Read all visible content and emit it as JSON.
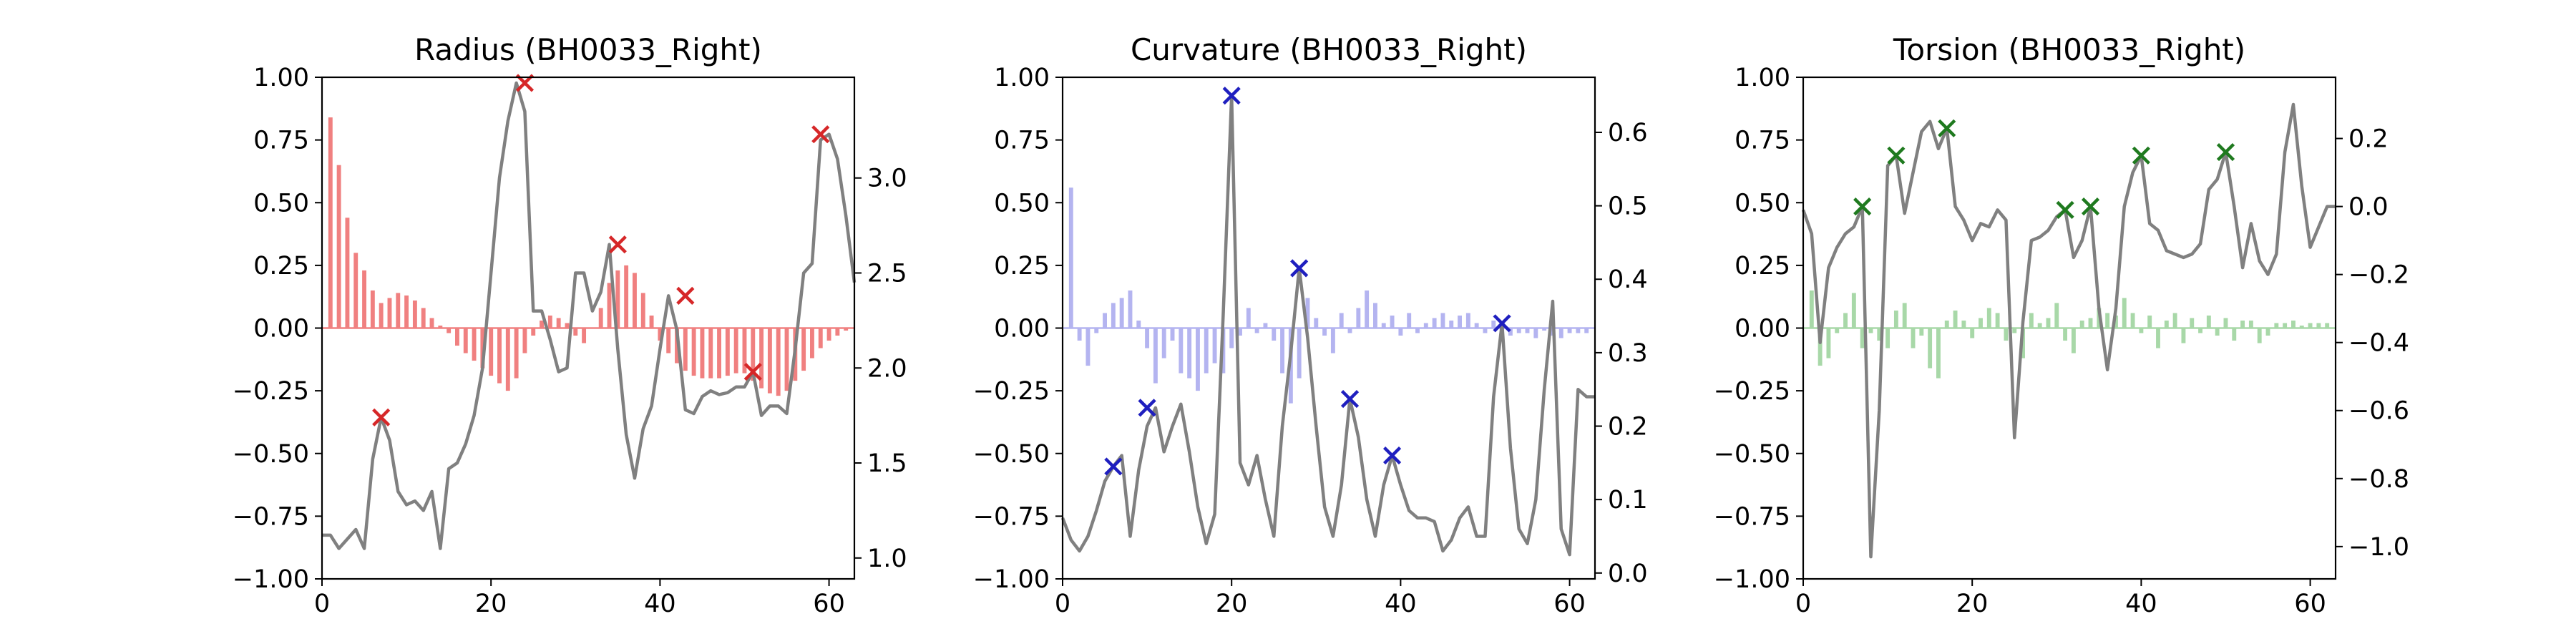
{
  "figure": {
    "background": "#ffffff"
  },
  "chart_data": [
    {
      "type": "bar+line",
      "title": "Radius (BH0033_Right)",
      "bar_color": "#f08080",
      "line_color": "#808080",
      "marker_color": "#d62728",
      "xlim": [
        0,
        63
      ],
      "xticks": [
        0,
        20,
        40,
        60
      ],
      "ylim_left": [
        -1.0,
        1.0
      ],
      "yticks_left": [
        -1.0,
        -0.75,
        -0.5,
        -0.25,
        0.0,
        0.25,
        0.5,
        0.75,
        1.0
      ],
      "ytick_labels_left": [
        "−1.00",
        "−0.75",
        "−0.50",
        "−0.25",
        "0.00",
        "0.25",
        "0.50",
        "0.75",
        "1.00"
      ],
      "ylim_right": [
        0.89,
        3.53
      ],
      "yticks_right": [
        1.0,
        1.5,
        2.0,
        2.5,
        3.0
      ],
      "ytick_labels_right": [
        "1.0",
        "1.5",
        "2.0",
        "2.5",
        "3.0"
      ],
      "bars_x": [
        1,
        2,
        3,
        4,
        5,
        6,
        7,
        8,
        9,
        10,
        11,
        12,
        13,
        14,
        15,
        16,
        17,
        18,
        19,
        20,
        21,
        22,
        23,
        24,
        25,
        26,
        27,
        28,
        29,
        30,
        31,
        32,
        33,
        34,
        35,
        36,
        37,
        38,
        39,
        40,
        41,
        42,
        43,
        44,
        45,
        46,
        47,
        48,
        49,
        50,
        51,
        52,
        53,
        54,
        55,
        56,
        57,
        58,
        59,
        60,
        61,
        62
      ],
      "bars": [
        0.84,
        0.65,
        0.44,
        0.3,
        0.23,
        0.15,
        0.1,
        0.12,
        0.14,
        0.13,
        0.11,
        0.08,
        0.04,
        0.01,
        -0.02,
        -0.07,
        -0.1,
        -0.13,
        -0.16,
        -0.19,
        -0.22,
        -0.25,
        -0.2,
        -0.1,
        -0.03,
        0.03,
        0.05,
        0.04,
        0.02,
        -0.03,
        -0.06,
        0.0,
        0.08,
        0.18,
        0.23,
        0.25,
        0.22,
        0.14,
        0.05,
        -0.05,
        -0.1,
        -0.14,
        -0.17,
        -0.19,
        -0.2,
        -0.2,
        -0.2,
        -0.19,
        -0.18,
        -0.18,
        -0.21,
        -0.24,
        -0.26,
        -0.27,
        -0.25,
        -0.21,
        -0.17,
        -0.12,
        -0.08,
        -0.05,
        -0.03,
        -0.01
      ],
      "line_x": [
        0,
        1,
        2,
        3,
        4,
        5,
        6,
        7,
        8,
        9,
        10,
        11,
        12,
        13,
        14,
        15,
        16,
        17,
        18,
        19,
        20,
        21,
        22,
        23,
        24,
        25,
        26,
        27,
        28,
        29,
        30,
        31,
        32,
        33,
        34,
        35,
        36,
        37,
        38,
        39,
        40,
        41,
        42,
        43,
        44,
        45,
        46,
        47,
        48,
        49,
        50,
        51,
        52,
        53,
        54,
        55,
        56,
        57,
        58,
        59,
        60,
        61,
        62,
        63
      ],
      "line_y": [
        1.12,
        1.12,
        1.05,
        1.1,
        1.15,
        1.05,
        1.52,
        1.74,
        1.62,
        1.35,
        1.28,
        1.3,
        1.25,
        1.35,
        1.05,
        1.47,
        1.5,
        1.6,
        1.75,
        2.0,
        2.5,
        3.0,
        3.3,
        3.5,
        3.35,
        2.3,
        2.3,
        2.15,
        1.98,
        2.0,
        2.5,
        2.5,
        2.3,
        2.4,
        2.65,
        2.1,
        1.65,
        1.42,
        1.68,
        1.8,
        2.1,
        2.38,
        2.2,
        1.78,
        1.76,
        1.85,
        1.88,
        1.86,
        1.87,
        1.9,
        1.9,
        1.98,
        1.75,
        1.8,
        1.8,
        1.76,
        2.1,
        2.5,
        2.55,
        3.2,
        3.23,
        3.1,
        2.8,
        2.45
      ],
      "markers": [
        [
          7,
          1.74
        ],
        [
          24,
          3.5
        ],
        [
          35,
          2.65
        ],
        [
          43,
          2.38
        ],
        [
          51,
          1.98
        ],
        [
          59,
          3.23
        ]
      ]
    },
    {
      "type": "bar+line",
      "title": "Curvature (BH0033_Right)",
      "bar_color": "#b4b4f0",
      "line_color": "#808080",
      "marker_color": "#1f1fbf",
      "xlim": [
        0,
        63
      ],
      "xticks": [
        0,
        20,
        40,
        60
      ],
      "ylim_left": [
        -1.0,
        1.0
      ],
      "yticks_left": [
        -1.0,
        -0.75,
        -0.5,
        -0.25,
        0.0,
        0.25,
        0.5,
        0.75,
        1.0
      ],
      "ytick_labels_left": [
        "−1.00",
        "−0.75",
        "−0.50",
        "−0.25",
        "0.00",
        "0.25",
        "0.50",
        "0.75",
        "1.00"
      ],
      "ylim_right": [
        -0.008,
        0.675
      ],
      "yticks_right": [
        0.0,
        0.1,
        0.2,
        0.3,
        0.4,
        0.5,
        0.6
      ],
      "ytick_labels_right": [
        "0.0",
        "0.1",
        "0.2",
        "0.3",
        "0.4",
        "0.5",
        "0.6"
      ],
      "bars_x": [
        1,
        2,
        3,
        4,
        5,
        6,
        7,
        8,
        9,
        10,
        11,
        12,
        13,
        14,
        15,
        16,
        17,
        18,
        19,
        20,
        21,
        22,
        23,
        24,
        25,
        26,
        27,
        28,
        29,
        30,
        31,
        32,
        33,
        34,
        35,
        36,
        37,
        38,
        39,
        40,
        41,
        42,
        43,
        44,
        45,
        46,
        47,
        48,
        49,
        50,
        51,
        52,
        53,
        54,
        55,
        56,
        57,
        58,
        59,
        60,
        61,
        62
      ],
      "bars": [
        0.56,
        -0.05,
        -0.15,
        -0.02,
        0.06,
        0.1,
        0.12,
        0.15,
        0.03,
        -0.08,
        -0.22,
        -0.12,
        -0.05,
        -0.18,
        -0.2,
        -0.25,
        -0.18,
        -0.14,
        -0.18,
        -0.08,
        -0.03,
        0.08,
        -0.02,
        0.02,
        -0.05,
        -0.18,
        -0.3,
        -0.2,
        0.12,
        0.04,
        -0.03,
        -0.1,
        0.06,
        -0.02,
        0.08,
        0.15,
        0.1,
        0.02,
        0.05,
        -0.03,
        0.06,
        -0.02,
        0.02,
        0.04,
        0.06,
        0.03,
        0.05,
        0.06,
        0.02,
        -0.02,
        0.03,
        0.02,
        -0.03,
        -0.02,
        -0.02,
        -0.04,
        -0.01,
        -0.03,
        -0.04,
        -0.02,
        -0.02,
        -0.02
      ],
      "line_x": [
        0,
        1,
        2,
        3,
        4,
        5,
        6,
        7,
        8,
        9,
        10,
        11,
        12,
        13,
        14,
        15,
        16,
        17,
        18,
        19,
        20,
        21,
        22,
        23,
        24,
        25,
        26,
        27,
        28,
        29,
        30,
        31,
        32,
        33,
        34,
        35,
        36,
        37,
        38,
        39,
        40,
        41,
        42,
        43,
        44,
        45,
        46,
        47,
        48,
        49,
        50,
        51,
        52,
        53,
        54,
        55,
        56,
        57,
        58,
        59,
        60,
        61,
        62,
        63
      ],
      "line_y": [
        0.075,
        0.045,
        0.03,
        0.05,
        0.085,
        0.125,
        0.145,
        0.16,
        0.05,
        0.14,
        0.2,
        0.225,
        0.165,
        0.2,
        0.23,
        0.165,
        0.09,
        0.04,
        0.08,
        0.35,
        0.65,
        0.15,
        0.12,
        0.16,
        0.1,
        0.05,
        0.2,
        0.3,
        0.415,
        0.32,
        0.2,
        0.09,
        0.05,
        0.12,
        0.237,
        0.185,
        0.1,
        0.05,
        0.12,
        0.16,
        0.12,
        0.085,
        0.075,
        0.075,
        0.07,
        0.03,
        0.045,
        0.075,
        0.09,
        0.05,
        0.05,
        0.24,
        0.34,
        0.17,
        0.06,
        0.04,
        0.1,
        0.25,
        0.37,
        0.06,
        0.025,
        0.25,
        0.24,
        0.24
      ],
      "markers": [
        [
          6,
          0.145
        ],
        [
          10,
          0.225
        ],
        [
          20,
          0.65
        ],
        [
          28,
          0.415
        ],
        [
          34,
          0.237
        ],
        [
          39,
          0.16
        ],
        [
          52,
          0.34
        ]
      ]
    },
    {
      "type": "bar+line",
      "title": "Torsion (BH0033_Right)",
      "bar_color": "#a8d8a8",
      "line_color": "#808080",
      "marker_color": "#1f7a1f",
      "xlim": [
        0,
        63
      ],
      "xticks": [
        0,
        20,
        40,
        60
      ],
      "ylim_left": [
        -1.0,
        1.0
      ],
      "yticks_left": [
        -1.0,
        -0.75,
        -0.5,
        -0.25,
        0.0,
        0.25,
        0.5,
        0.75,
        1.0
      ],
      "ytick_labels_left": [
        "−1.00",
        "−0.75",
        "−0.50",
        "−0.25",
        "0.00",
        "0.25",
        "0.50",
        "0.75",
        "1.00"
      ],
      "ylim_right": [
        -1.095,
        0.38
      ],
      "yticks_right": [
        -1.0,
        -0.8,
        -0.6,
        -0.4,
        -0.2,
        0.0,
        0.2
      ],
      "ytick_labels_right": [
        "−1.0",
        "−0.8",
        "−0.6",
        "−0.4",
        "−0.2",
        "0.0",
        "0.2"
      ],
      "bars_x": [
        1,
        2,
        3,
        4,
        5,
        6,
        7,
        8,
        9,
        10,
        11,
        12,
        13,
        14,
        15,
        16,
        17,
        18,
        19,
        20,
        21,
        22,
        23,
        24,
        25,
        26,
        27,
        28,
        29,
        30,
        31,
        32,
        33,
        34,
        35,
        36,
        37,
        38,
        39,
        40,
        41,
        42,
        43,
        44,
        45,
        46,
        47,
        48,
        49,
        50,
        51,
        52,
        53,
        54,
        55,
        56,
        57,
        58,
        59,
        60,
        61,
        62
      ],
      "bars": [
        0.15,
        -0.15,
        -0.12,
        -0.02,
        0.06,
        0.14,
        -0.08,
        -0.02,
        -0.05,
        -0.08,
        0.07,
        0.1,
        -0.08,
        -0.03,
        -0.16,
        -0.2,
        0.03,
        0.07,
        0.03,
        -0.04,
        0.04,
        0.08,
        0.06,
        -0.05,
        -0.02,
        -0.12,
        0.06,
        0.02,
        0.04,
        0.1,
        -0.05,
        -0.1,
        0.03,
        0.04,
        0.08,
        0.06,
        0.05,
        0.12,
        0.06,
        -0.02,
        0.05,
        -0.08,
        0.03,
        0.06,
        -0.06,
        0.04,
        -0.02,
        0.05,
        -0.03,
        0.04,
        -0.05,
        0.03,
        0.03,
        -0.06,
        -0.03,
        0.02,
        0.02,
        0.03,
        0.01,
        0.02,
        0.02,
        0.02
      ],
      "line_x": [
        0,
        1,
        2,
        3,
        4,
        5,
        6,
        7,
        8,
        9,
        10,
        11,
        12,
        13,
        14,
        15,
        16,
        17,
        18,
        19,
        20,
        21,
        22,
        23,
        24,
        25,
        26,
        27,
        28,
        29,
        30,
        31,
        32,
        33,
        34,
        35,
        36,
        37,
        38,
        39,
        40,
        41,
        42,
        43,
        44,
        45,
        46,
        47,
        48,
        49,
        50,
        51,
        52,
        53,
        54,
        55,
        56,
        57,
        58,
        59,
        60,
        61,
        62,
        63
      ],
      "line_y": [
        -0.01,
        -0.08,
        -0.4,
        -0.18,
        -0.12,
        -0.08,
        -0.06,
        0.0,
        -1.03,
        -0.6,
        0.12,
        0.15,
        -0.02,
        0.1,
        0.22,
        0.25,
        0.17,
        0.23,
        0.0,
        -0.04,
        -0.1,
        -0.05,
        -0.06,
        -0.01,
        -0.04,
        -0.68,
        -0.34,
        -0.1,
        -0.09,
        -0.07,
        -0.03,
        -0.01,
        -0.15,
        -0.1,
        0.0,
        -0.3,
        -0.48,
        -0.3,
        0.0,
        0.1,
        0.15,
        -0.05,
        -0.07,
        -0.13,
        -0.14,
        -0.15,
        -0.14,
        -0.11,
        0.05,
        0.08,
        0.16,
        0.0,
        -0.18,
        -0.05,
        -0.16,
        -0.2,
        -0.14,
        0.16,
        0.3,
        0.06,
        -0.12,
        -0.06,
        0.0,
        0.0
      ],
      "markers": [
        [
          7,
          0.0
        ],
        [
          11,
          0.15
        ],
        [
          17,
          0.23
        ],
        [
          31,
          -0.01
        ],
        [
          34,
          0.0
        ],
        [
          40,
          0.15
        ],
        [
          50,
          0.16
        ]
      ]
    }
  ]
}
